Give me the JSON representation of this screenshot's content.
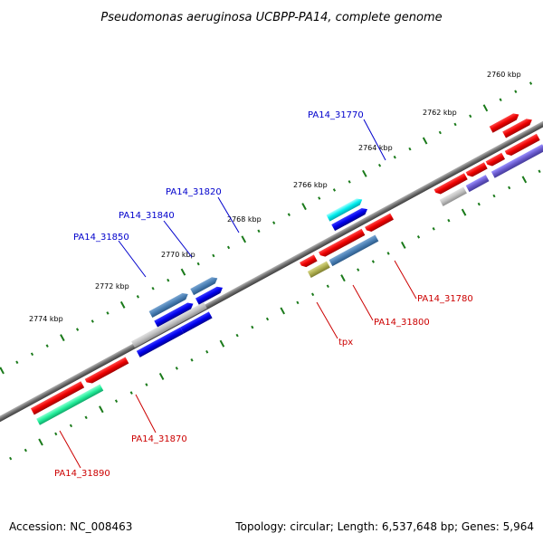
{
  "title": "Pseudomonas aeruginosa UCBPP-PA14, complete genome",
  "footer": {
    "accession": "Accession: NC_008463",
    "summary": "Topology: circular; Length: 6,537,648 bp; Genes: 5,964"
  },
  "colors": {
    "forward_label": "#0000cc",
    "reverse_label": "#cc0000",
    "backbone": "#707070",
    "tick": "#1a7a1a"
  },
  "kbp_labels": [
    "2760 kbp",
    "2762 kbp",
    "2764 kbp",
    "2766 kbp",
    "2768 kbp",
    "2770 kbp",
    "2772 kbp",
    "2774 kbp"
  ],
  "forward_gene_labels": [
    "PA14_31770",
    "PA14_31820",
    "PA14_31840",
    "PA14_31850"
  ],
  "reverse_gene_labels": [
    "PA14_31780",
    "PA14_31800",
    "tpx",
    "PA14_31870",
    "PA14_31890"
  ]
}
